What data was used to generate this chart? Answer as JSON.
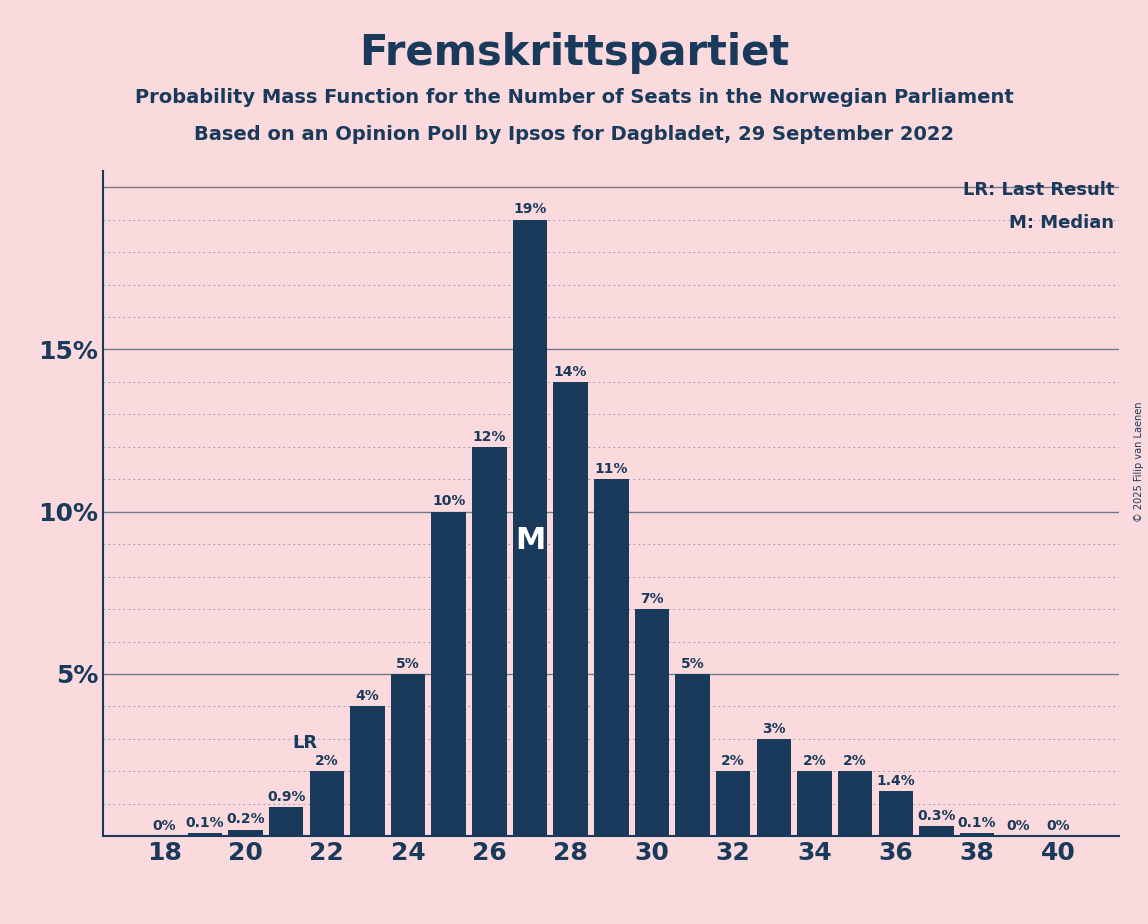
{
  "title": "Fremskrittspartiet",
  "subtitle1": "Probability Mass Function for the Number of Seats in the Norwegian Parliament",
  "subtitle2": "Based on an Opinion Poll by Ipsos for Dagbladet, 29 September 2022",
  "copyright": "© 2025 Filip van Laenen",
  "seats": [
    18,
    19,
    20,
    21,
    22,
    23,
    24,
    25,
    26,
    27,
    28,
    29,
    30,
    31,
    32,
    33,
    34,
    35,
    36,
    37,
    38,
    39,
    40
  ],
  "values": [
    0.0,
    0.1,
    0.2,
    0.9,
    2.0,
    4.0,
    5.0,
    10.0,
    12.0,
    19.0,
    14.0,
    11.0,
    7.0,
    5.0,
    2.0,
    3.0,
    2.0,
    2.0,
    1.4,
    0.3,
    0.1,
    0.0,
    0.0
  ],
  "bar_color": "#1a3a5c",
  "background_color": "#fadadd",
  "text_color": "#1a3a5c",
  "lr_seat": 22,
  "median_seat": 27,
  "ylim": [
    0,
    20.5
  ],
  "ytick_labels": [
    "5%",
    "10%",
    "15%"
  ],
  "ytick_values": [
    5,
    10,
    15
  ],
  "xtick_step": 2,
  "legend_lr": "LR: Last Result",
  "legend_m": "M: Median"
}
